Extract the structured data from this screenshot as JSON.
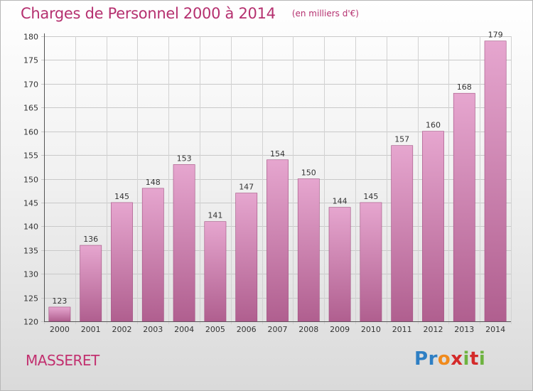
{
  "header": {
    "title": "Charges de Personnel 2000 à 2014",
    "unit": "(en milliers d'€)"
  },
  "footer": {
    "commune": "MASSERET",
    "brand": [
      "P",
      "r",
      "o",
      "x",
      "i",
      "t",
      "i"
    ],
    "brand_colors": [
      "#2e7fc4",
      "#2e7fc4",
      "#f08a1c",
      "#d42a2a",
      "#6db33f",
      "#d42a2a",
      "#6db33f"
    ]
  },
  "colors": {
    "bar_top": "#e6a6cf",
    "bar_bottom": "#b05f8f",
    "bar_edge": "#a14f80",
    "title": "#b5306f"
  },
  "chart_data": {
    "type": "bar",
    "title": "Charges de Personnel 2000 à 2014",
    "subtitle": "(en milliers d'€)",
    "categories": [
      "2000",
      "2001",
      "2002",
      "2003",
      "2004",
      "2005",
      "2006",
      "2007",
      "2008",
      "2009",
      "2010",
      "2011",
      "2012",
      "2013",
      "2014"
    ],
    "values": [
      123,
      136,
      145,
      148,
      153,
      141,
      147,
      154,
      150,
      144,
      145,
      157,
      160,
      168,
      179
    ],
    "ylim": [
      120,
      180
    ],
    "yticks": [
      120,
      125,
      130,
      135,
      140,
      145,
      150,
      155,
      160,
      165,
      170,
      175,
      180
    ],
    "grid": true,
    "xlabel": "",
    "ylabel": ""
  }
}
